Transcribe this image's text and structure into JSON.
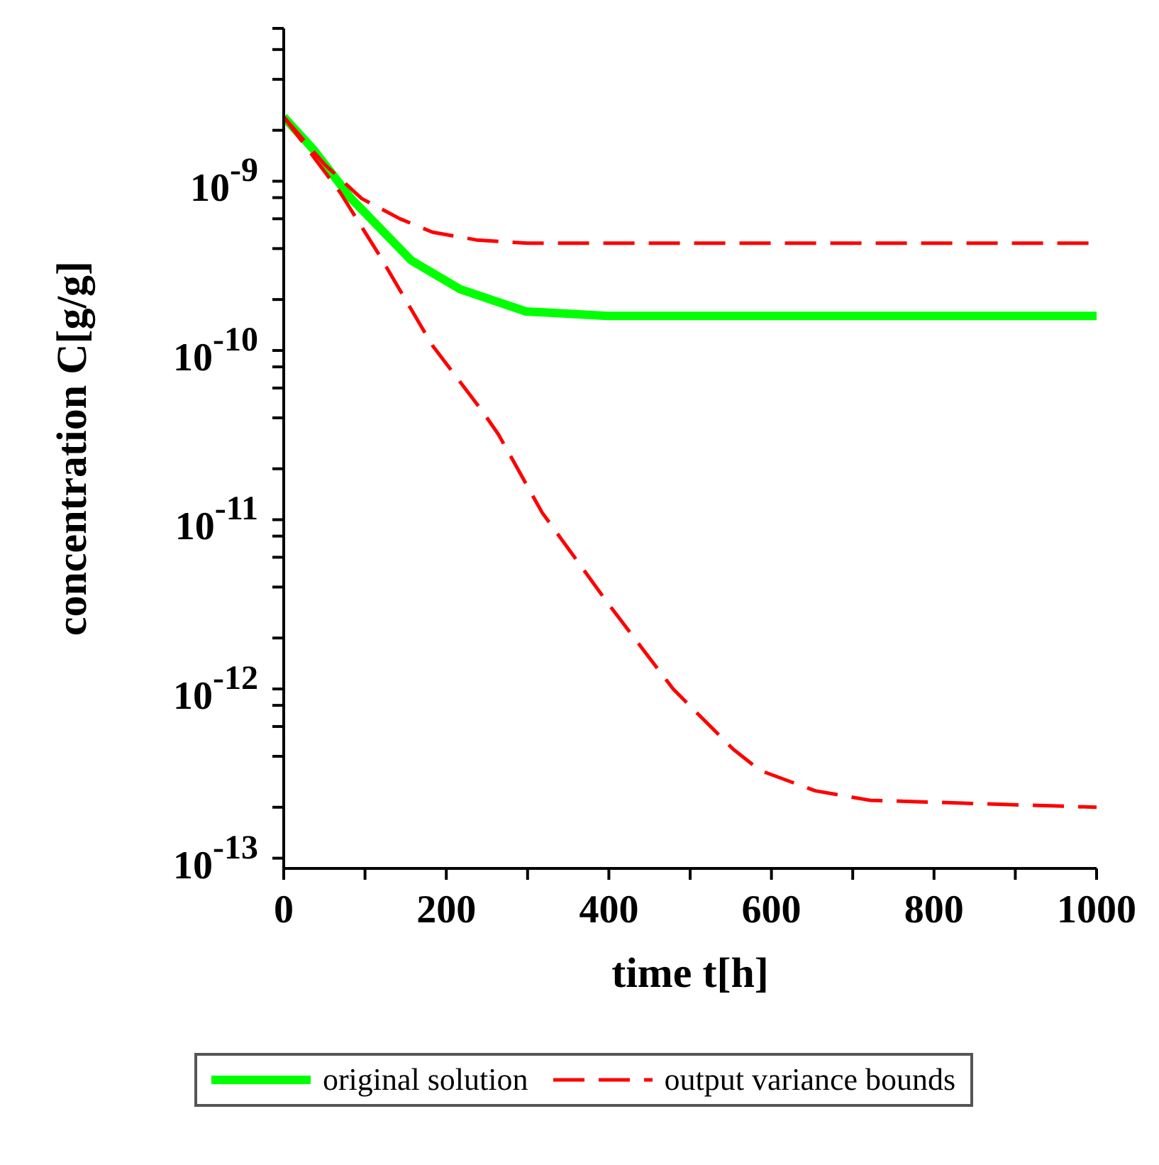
{
  "chart_data": {
    "type": "line",
    "xlabel": "time t[h]",
    "ylabel": "concentration C[g/g]",
    "log": "y",
    "xlim": [
      0,
      1000
    ],
    "xticks": [
      0,
      {
        "value": 100,
        "label": null
      },
      200,
      {
        "value": 300,
        "label": null
      },
      400,
      {
        "value": 500,
        "label": null
      },
      600,
      {
        "value": 700,
        "label": null
      },
      800,
      {
        "value": 900,
        "label": null
      },
      1000
    ],
    "ylim": [
      8.7e-14,
      8e-09
    ],
    "yticks": [
      {
        "value": 1e-13,
        "label": "10$^{-13}$"
      },
      {
        "value": 2e-13,
        "label": null
      },
      {
        "value": 4e-13,
        "label": null
      },
      {
        "value": 6e-13,
        "label": null
      },
      {
        "value": 8e-13,
        "label": null
      },
      {
        "value": 1e-12,
        "label": "10$^{-12}$"
      },
      {
        "value": 2e-12,
        "label": null
      },
      {
        "value": 4e-12,
        "label": null
      },
      {
        "value": 6e-12,
        "label": null
      },
      {
        "value": 8e-12,
        "label": null
      },
      {
        "value": 1e-11,
        "label": "10$^{-11}$"
      },
      {
        "value": 2e-11,
        "label": null
      },
      {
        "value": 4e-11,
        "label": null
      },
      {
        "value": 6e-11,
        "label": null
      },
      {
        "value": 8e-11,
        "label": null
      },
      {
        "value": 1e-10,
        "label": "10$^{-10}$"
      },
      {
        "value": 2e-10,
        "label": null
      },
      {
        "value": 4e-10,
        "label": null
      },
      {
        "value": 6e-10,
        "label": null
      },
      {
        "value": 8e-10,
        "label": null
      },
      {
        "value": 1e-09,
        "label": "10$^{-9}$"
      },
      {
        "value": 2e-09,
        "label": null
      },
      {
        "value": 4e-09,
        "label": null
      },
      {
        "value": 6e-09,
        "label": null
      },
      {
        "value": 8e-09,
        "label": null
      }
    ],
    "legend": "bottom",
    "marker": "none",
    "series": [
      {
        "name": "original solution",
        "color": "#00ff00",
        "line_style": "solid",
        "x": [
          0,
          36,
          83,
          157,
          217,
          298,
          398,
          1000
        ],
        "values": [
          2.4e-09,
          1.55e-09,
          7.9e-10,
          3.4e-10,
          2.3e-10,
          1.7e-10,
          1.6e-10,
          1.6e-10
        ]
      },
      {
        "name": "output variance bounds",
        "color": "#ff0000",
        "line_style": "dashed",
        "x": [
          0,
          50,
          96,
          143,
          183,
          237,
          300,
          1000
        ],
        "values": [
          2.4e-09,
          1.26e-09,
          7.9e-10,
          6e-10,
          5e-10,
          4.5e-10,
          4.3e-10,
          4.3e-10
        ]
      },
      {
        "color": "#ff0000",
        "line_style": "dashed",
        "x": [
          0,
          70,
          117,
          183,
          244,
          264,
          318,
          399,
          479,
          553,
          586,
          654,
          721,
          855,
          1000
        ],
        "values": [
          2.4e-09,
          8.5e-10,
          3.7e-10,
          1.07e-10,
          4.4e-11,
          3.2e-11,
          1.1e-11,
          3.2e-12,
          1e-12,
          4.4e-13,
          3.3e-13,
          2.5e-13,
          2.2e-13,
          2.1e-13,
          2e-13
        ]
      }
    ]
  }
}
